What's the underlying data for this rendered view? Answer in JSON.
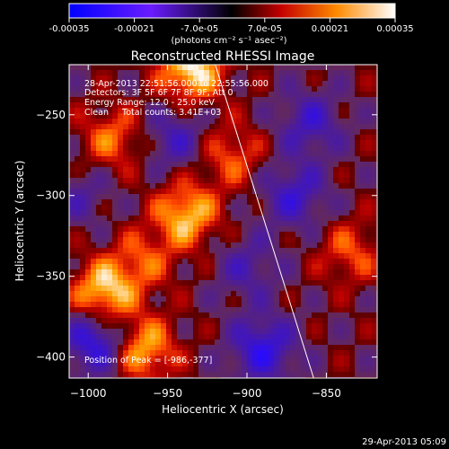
{
  "colorbar": {
    "tick_labels": [
      "-0.00035",
      "-0.00021",
      "-7.0e-05",
      "7.0e-05",
      "0.00021",
      "0.00035"
    ],
    "units_label": "(photons cm⁻² s⁻¹ asec⁻²)",
    "range": [
      -0.00035,
      0.00035
    ]
  },
  "chart_data": {
    "type": "heatmap",
    "title": "Reconstructed RHESSI Image",
    "xlabel": "Heliocentric X (arcsec)",
    "ylabel": "Heliocentric Y (arcsec)",
    "xlim": [
      -1012,
      -818
    ],
    "ylim": [
      -413,
      -219
    ],
    "x_ticks": [
      -1000,
      -950,
      -900,
      -850
    ],
    "y_ticks": [
      -250,
      -300,
      -350,
      -400
    ],
    "x_tick_labels": [
      "−1000",
      "−950",
      "−900",
      "−850"
    ],
    "y_tick_labels": [
      "−250",
      "−300",
      "−350",
      "−400"
    ],
    "limb_line": [
      {
        "x": -920,
        "y": -219
      },
      {
        "x": -858,
        "y": -413
      }
    ],
    "peak": {
      "x": -986,
      "y": -377
    },
    "bright_sources": [
      {
        "x": -935,
        "y": -222,
        "value": 0.00035
      },
      {
        "x": -990,
        "y": -360,
        "value": 0.00033
      },
      {
        "x": -965,
        "y": -395,
        "value": 0.00028
      },
      {
        "x": -938,
        "y": -312,
        "value": 0.0003
      },
      {
        "x": -985,
        "y": -265,
        "value": 0.0002
      },
      {
        "x": -910,
        "y": -275,
        "value": 0.00018
      },
      {
        "x": -835,
        "y": -335,
        "value": 0.00017
      },
      {
        "x": -965,
        "y": -340,
        "value": 0.00016
      }
    ],
    "dark_sources": [
      {
        "x": -995,
        "y": -390,
        "value": -0.0003
      },
      {
        "x": -890,
        "y": -395,
        "value": -0.00028
      },
      {
        "x": -870,
        "y": -300,
        "value": -0.00022
      },
      {
        "x": -945,
        "y": -265,
        "value": -0.00018
      },
      {
        "x": -860,
        "y": -255,
        "value": -0.0002
      },
      {
        "x": -900,
        "y": -345,
        "value": -0.00015
      },
      {
        "x": -1005,
        "y": -300,
        "value": -0.00012
      }
    ],
    "grid": false
  },
  "annotations": {
    "time_range": "28-Apr-2013 22:51:56.000 to 22:55:56.000",
    "detectors": "Detectors: 3F 5F 6F 7F 8F 9F, Att 0",
    "energy": "Energy Range: 12.0 - 25.0 keV",
    "clean": "Clean     Total counts: 3.41E+03",
    "peak": "Position of Peak = [-986,-377]"
  },
  "footer": {
    "timestamp": "29-Apr-2013 05:09"
  }
}
